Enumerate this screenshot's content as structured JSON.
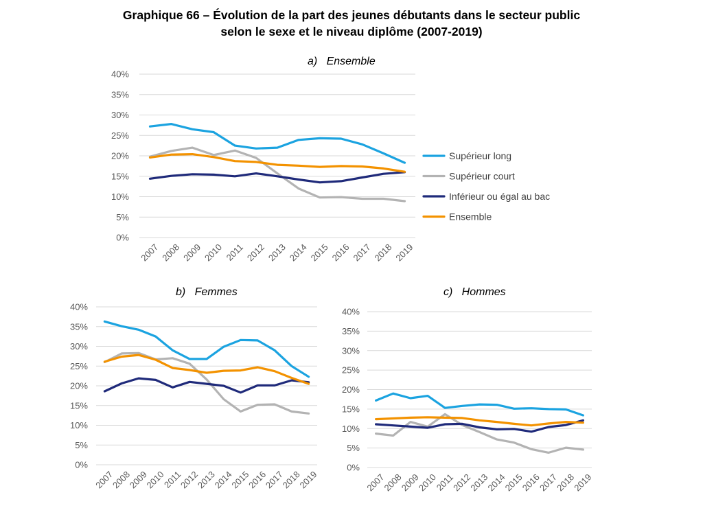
{
  "title_line1": "Graphique 66 – Évolution de la part des jeunes débutants dans le secteur public",
  "title_line2": "selon le sexe et le niveau diplôme (2007-2019)",
  "legend": [
    {
      "name": "Supérieur long",
      "color": "#1ba3e0"
    },
    {
      "name": "Supérieur court",
      "color": "#b3b3b3"
    },
    {
      "name": "Inférieur ou égal au bac",
      "color": "#1f2a7a"
    },
    {
      "name": "Ensemble",
      "color": "#f39200"
    }
  ],
  "chart_data": [
    {
      "type": "line",
      "title": "a)   Ensemble",
      "x": [
        "2007",
        "2008",
        "2009",
        "2010",
        "2011",
        "2012",
        "2013",
        "2014",
        "2015",
        "2016",
        "2017",
        "2018",
        "2019"
      ],
      "ylim": [
        0,
        40
      ],
      "yticks": [
        "0%",
        "5%",
        "10%",
        "15%",
        "20%",
        "25%",
        "30%",
        "35%",
        "40%"
      ],
      "series": [
        {
          "name": "Supérieur long",
          "color": "#1ba3e0",
          "values": [
            27.2,
            27.8,
            26.5,
            25.8,
            22.5,
            21.8,
            22.0,
            23.9,
            24.3,
            24.2,
            22.8,
            20.6,
            18.3
          ]
        },
        {
          "name": "Supérieur court",
          "color": "#b3b3b3",
          "values": [
            19.8,
            21.2,
            22.0,
            20.2,
            21.3,
            19.5,
            15.7,
            12.0,
            9.8,
            9.9,
            9.5,
            9.5,
            8.9
          ]
        },
        {
          "name": "Inférieur ou égal au bac",
          "color": "#1f2a7a",
          "values": [
            14.4,
            15.1,
            15.5,
            15.4,
            15.0,
            15.7,
            15.0,
            14.2,
            13.5,
            13.8,
            14.7,
            15.6,
            16.0
          ]
        },
        {
          "name": "Ensemble",
          "color": "#f39200",
          "values": [
            19.6,
            20.3,
            20.4,
            19.7,
            18.7,
            18.5,
            17.8,
            17.6,
            17.3,
            17.5,
            17.4,
            16.9,
            16.1
          ]
        }
      ]
    },
    {
      "type": "line",
      "title": "b)   Femmes",
      "x": [
        "2007",
        "2008",
        "2009",
        "2010",
        "2011",
        "2012",
        "2013",
        "2014",
        "2015",
        "2016",
        "2017",
        "2018",
        "2019"
      ],
      "ylim": [
        0,
        40
      ],
      "yticks": [
        "0%",
        "5%",
        "10%",
        "15%",
        "20%",
        "25%",
        "30%",
        "35%",
        "40%"
      ],
      "series": [
        {
          "name": "Supérieur long",
          "color": "#1ba3e0",
          "values": [
            36.3,
            35.1,
            34.2,
            32.5,
            29.0,
            26.8,
            26.8,
            29.9,
            31.6,
            31.5,
            29.0,
            25.0,
            22.3
          ]
        },
        {
          "name": "Supérieur court",
          "color": "#b3b3b3",
          "values": [
            26.0,
            28.2,
            28.3,
            26.7,
            27.0,
            25.6,
            21.6,
            16.6,
            13.5,
            15.2,
            15.3,
            13.5,
            13.0
          ]
        },
        {
          "name": "Inférieur ou égal au bac",
          "color": "#1f2a7a",
          "values": [
            18.6,
            20.6,
            21.9,
            21.5,
            19.6,
            21.0,
            20.5,
            20.0,
            18.3,
            20.1,
            20.1,
            21.4,
            20.9
          ]
        },
        {
          "name": "Ensemble",
          "color": "#f39200",
          "values": [
            26.1,
            27.4,
            27.8,
            26.6,
            24.5,
            24.0,
            23.3,
            23.8,
            23.9,
            24.7,
            23.7,
            22.0,
            20.5
          ]
        }
      ]
    },
    {
      "type": "line",
      "title": "c)   Hommes",
      "x": [
        "2007",
        "2008",
        "2009",
        "2010",
        "2011",
        "2012",
        "2013",
        "2014",
        "2015",
        "2016",
        "2017",
        "2018",
        "2019"
      ],
      "ylim": [
        0,
        40
      ],
      "yticks": [
        "0%",
        "5%",
        "10%",
        "15%",
        "20%",
        "25%",
        "30%",
        "35%",
        "40%"
      ],
      "series": [
        {
          "name": "Supérieur long",
          "color": "#1ba3e0",
          "values": [
            17.2,
            19.0,
            17.8,
            18.4,
            15.3,
            15.8,
            16.2,
            16.1,
            15.1,
            15.2,
            15.0,
            14.9,
            13.4
          ]
        },
        {
          "name": "Supérieur court",
          "color": "#b3b3b3",
          "values": [
            8.7,
            8.2,
            11.7,
            10.5,
            13.7,
            10.9,
            9.1,
            7.2,
            6.4,
            4.7,
            3.8,
            5.1,
            4.6
          ]
        },
        {
          "name": "Inférieur ou égal au bac",
          "color": "#1f2a7a",
          "values": [
            11.1,
            10.8,
            10.5,
            10.2,
            11.1,
            11.2,
            10.3,
            9.8,
            9.9,
            9.2,
            10.4,
            10.9,
            12.1
          ]
        },
        {
          "name": "Ensemble",
          "color": "#f39200",
          "values": [
            12.4,
            12.6,
            12.8,
            12.9,
            12.8,
            12.7,
            12.1,
            11.7,
            11.2,
            10.8,
            11.3,
            11.7,
            11.5
          ]
        }
      ]
    }
  ]
}
